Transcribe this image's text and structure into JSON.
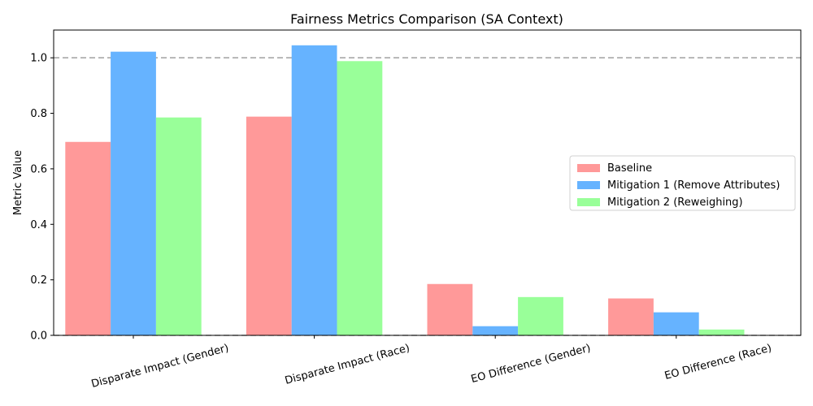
{
  "chart_data": {
    "type": "bar",
    "title": "Fairness Metrics Comparison (SA Context)",
    "xlabel": "",
    "ylabel": "Metric Value",
    "categories": [
      "Disparate Impact (Gender)",
      "Disparate Impact (Race)",
      "EO Difference (Gender)",
      "EO Difference (Race)"
    ],
    "series": [
      {
        "name": "Baseline",
        "color": "#ff9999",
        "values": [
          0.697,
          0.788,
          0.185,
          0.133
        ]
      },
      {
        "name": "Mitigation 1 (Remove Attributes)",
        "color": "#66b3ff",
        "values": [
          1.022,
          1.045,
          0.033,
          0.083
        ]
      },
      {
        "name": "Mitigation 2 (Reweighing)",
        "color": "#99ff99",
        "values": [
          0.785,
          0.988,
          0.138,
          0.021
        ]
      }
    ],
    "ylim": [
      0,
      1.1
    ],
    "yticks": [
      "0.0",
      "0.2",
      "0.4",
      "0.6",
      "0.8",
      "1.0"
    ],
    "reference_lines": [
      1.0,
      0.0
    ],
    "grid": false,
    "legend_position": "center-right",
    "xtick_rotation": "rotated"
  }
}
